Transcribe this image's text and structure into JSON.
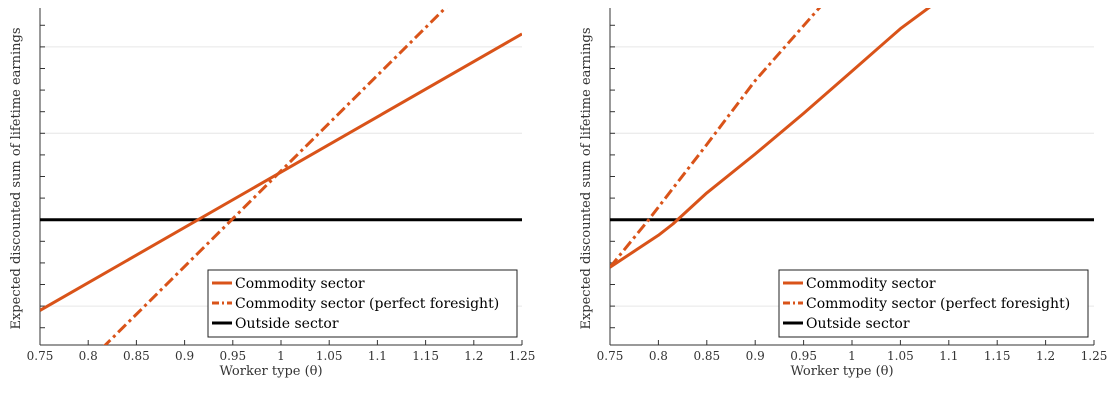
{
  "chart_data": [
    {
      "type": "line",
      "title": "",
      "xlabel": "Worker type (θ)",
      "ylabel": "Expected discounted sum of lifetime earnings",
      "xlim": [
        0.75,
        1.25
      ],
      "ylim": [
        -1.45,
        2.45
      ],
      "xticks": [
        0.75,
        0.8,
        0.85,
        0.9,
        0.95,
        1,
        1.05,
        1.1,
        1.15,
        1.2,
        1.25
      ],
      "xtick_labels": [
        "0.75",
        "0.8",
        "0.85",
        "0.9",
        "0.95",
        "1",
        "1.05",
        "1.1",
        "1.15",
        "1.2",
        "1.25"
      ],
      "yticks": [
        -1.25,
        -1,
        -0.75,
        -0.5,
        -0.25,
        0,
        0.25,
        0.5,
        0.75,
        1,
        1.25,
        1.5,
        1.75,
        2,
        2.25
      ],
      "grid": "horizontal",
      "gridlines_y": [
        -1,
        0,
        1,
        2
      ],
      "legend_position": "bottom-right",
      "series": [
        {
          "name": "Commodity sector",
          "color": "#D95319",
          "style": "solid",
          "x": [
            0.75,
            1.25
          ],
          "y": [
            -1.05,
            2.15
          ]
        },
        {
          "name": "Commodity sector (perfect foresight)",
          "color": "#D95319",
          "style": "dashdot",
          "x": [
            0.75,
            1.175
          ],
          "y": [
            -2.2,
            2.5
          ]
        },
        {
          "name": "Outside sector",
          "color": "#000000",
          "style": "solid",
          "x": [
            0.75,
            1.25
          ],
          "y": [
            0,
            0
          ]
        }
      ]
    },
    {
      "type": "line",
      "title": "",
      "xlabel": "Worker type (θ)",
      "ylabel": "Expected discounted sum of lifetime earnings",
      "xlim": [
        0.75,
        1.25
      ],
      "ylim": [
        -1.45,
        2.45
      ],
      "xticks": [
        0.75,
        0.8,
        0.85,
        0.9,
        0.95,
        1,
        1.05,
        1.1,
        1.15,
        1.2,
        1.25
      ],
      "xtick_labels": [
        "0.75",
        "0.8",
        "0.85",
        "0.9",
        "0.95",
        "1",
        "1.05",
        "1.1",
        "1.15",
        "1.2",
        "1.25"
      ],
      "yticks": [
        -1.25,
        -1,
        -0.75,
        -0.5,
        -0.25,
        0,
        0.25,
        0.5,
        0.75,
        1,
        1.25,
        1.5,
        1.75,
        2,
        2.25
      ],
      "grid": "horizontal",
      "gridlines_y": [
        -1,
        0,
        1,
        2
      ],
      "legend_position": "bottom-right",
      "series": [
        {
          "name": "Commodity sector",
          "color": "#D95319",
          "style": "solid",
          "x": [
            0.75,
            0.8,
            0.815,
            0.85,
            0.9,
            0.95,
            1.0,
            1.05,
            1.085
          ],
          "y": [
            -0.55,
            -0.18,
            -0.05,
            0.31,
            0.76,
            1.23,
            1.72,
            2.21,
            2.5
          ]
        },
        {
          "name": "Commodity sector (perfect foresight)",
          "color": "#D95319",
          "style": "dashdot",
          "x": [
            0.75,
            0.79,
            0.85,
            0.9,
            0.97
          ],
          "y": [
            -0.55,
            0.0,
            0.87,
            1.61,
            2.5
          ]
        },
        {
          "name": "Outside sector",
          "color": "#000000",
          "style": "solid",
          "x": [
            0.75,
            1.25
          ],
          "y": [
            0,
            0
          ]
        }
      ]
    }
  ]
}
